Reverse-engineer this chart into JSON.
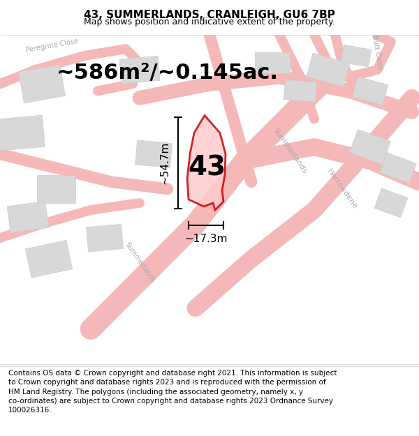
{
  "title": "43, SUMMERLANDS, CRANLEIGH, GU6 7BP",
  "subtitle": "Map shows position and indicative extent of the property.",
  "area_text": "~586m²/~0.145ac.",
  "number_label": "43",
  "dim_height": "~54.7m",
  "dim_width": "~17.3m",
  "footer_text": "Contains OS data © Crown copyright and database right 2021. This information is subject\nto Crown copyright and database rights 2023 and is reproduced with the permission of\nHM Land Registry. The polygons (including the associated geometry, namely x, y\nco-ordinates) are subject to Crown copyright and database rights 2023 Ordnance Survey\n100026316.",
  "map_bg": "#ffffff",
  "road_color": "#f5b8b8",
  "building_color": "#d8d8d8",
  "building_edge": "#cccccc",
  "property_fill": "#ffcccc",
  "property_edge": "#cc0000",
  "dim_line_color": "#000000",
  "street_label_color": "#aaaaaa",
  "title_fontsize": 11,
  "subtitle_fontsize": 9,
  "area_fontsize": 22,
  "number_fontsize": 28,
  "dim_fontsize": 11,
  "footer_fontsize": 7.5
}
